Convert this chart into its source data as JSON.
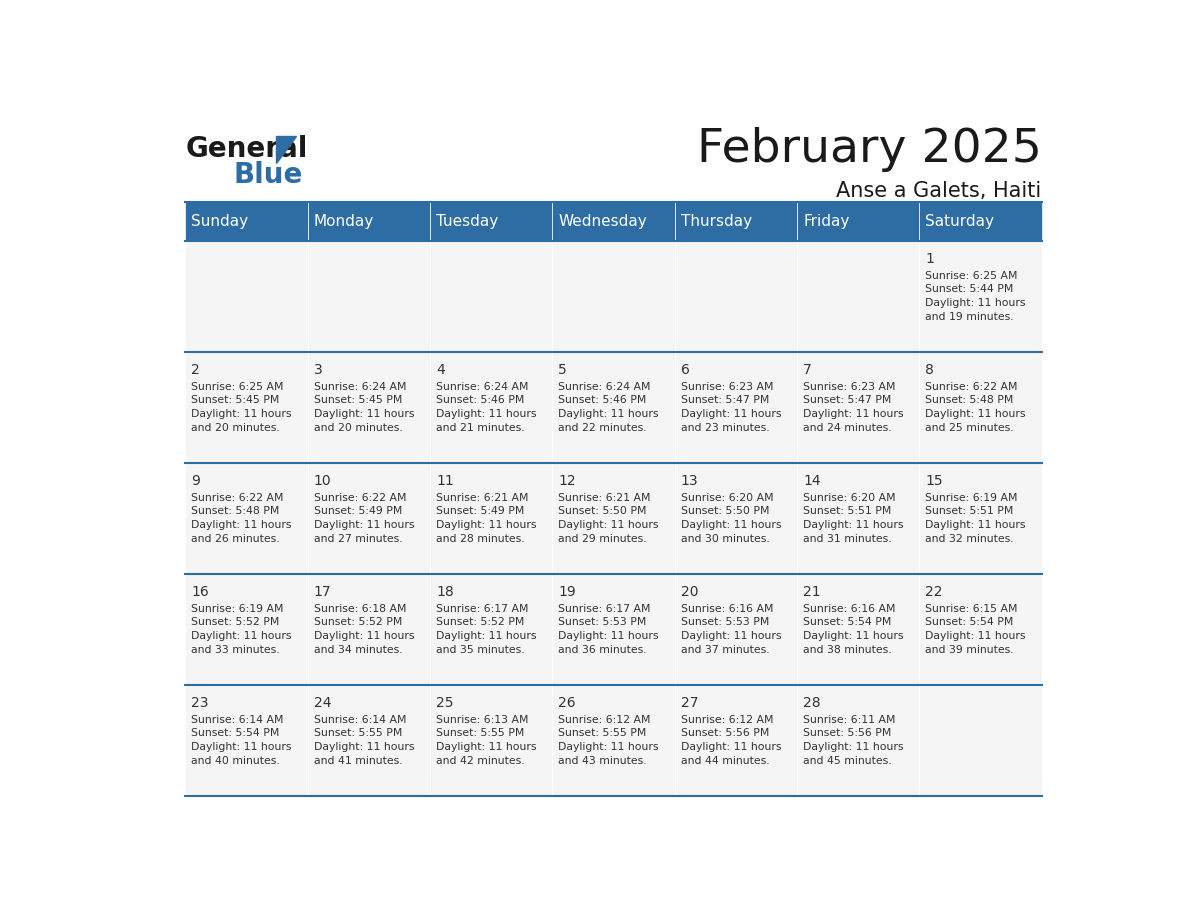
{
  "title": "February 2025",
  "subtitle": "Anse a Galets, Haiti",
  "header_color": "#2E6DA4",
  "header_text_color": "#FFFFFF",
  "cell_bg_color": "#F2F2F2",
  "border_color": "#2E6DA4",
  "text_color": "#333333",
  "days_of_week": [
    "Sunday",
    "Monday",
    "Tuesday",
    "Wednesday",
    "Thursday",
    "Friday",
    "Saturday"
  ],
  "weeks": [
    [
      {
        "day": null,
        "info": null
      },
      {
        "day": null,
        "info": null
      },
      {
        "day": null,
        "info": null
      },
      {
        "day": null,
        "info": null
      },
      {
        "day": null,
        "info": null
      },
      {
        "day": null,
        "info": null
      },
      {
        "day": 1,
        "info": "Sunrise: 6:25 AM\nSunset: 5:44 PM\nDaylight: 11 hours\nand 19 minutes."
      }
    ],
    [
      {
        "day": 2,
        "info": "Sunrise: 6:25 AM\nSunset: 5:45 PM\nDaylight: 11 hours\nand 20 minutes."
      },
      {
        "day": 3,
        "info": "Sunrise: 6:24 AM\nSunset: 5:45 PM\nDaylight: 11 hours\nand 20 minutes."
      },
      {
        "day": 4,
        "info": "Sunrise: 6:24 AM\nSunset: 5:46 PM\nDaylight: 11 hours\nand 21 minutes."
      },
      {
        "day": 5,
        "info": "Sunrise: 6:24 AM\nSunset: 5:46 PM\nDaylight: 11 hours\nand 22 minutes."
      },
      {
        "day": 6,
        "info": "Sunrise: 6:23 AM\nSunset: 5:47 PM\nDaylight: 11 hours\nand 23 minutes."
      },
      {
        "day": 7,
        "info": "Sunrise: 6:23 AM\nSunset: 5:47 PM\nDaylight: 11 hours\nand 24 minutes."
      },
      {
        "day": 8,
        "info": "Sunrise: 6:22 AM\nSunset: 5:48 PM\nDaylight: 11 hours\nand 25 minutes."
      }
    ],
    [
      {
        "day": 9,
        "info": "Sunrise: 6:22 AM\nSunset: 5:48 PM\nDaylight: 11 hours\nand 26 minutes."
      },
      {
        "day": 10,
        "info": "Sunrise: 6:22 AM\nSunset: 5:49 PM\nDaylight: 11 hours\nand 27 minutes."
      },
      {
        "day": 11,
        "info": "Sunrise: 6:21 AM\nSunset: 5:49 PM\nDaylight: 11 hours\nand 28 minutes."
      },
      {
        "day": 12,
        "info": "Sunrise: 6:21 AM\nSunset: 5:50 PM\nDaylight: 11 hours\nand 29 minutes."
      },
      {
        "day": 13,
        "info": "Sunrise: 6:20 AM\nSunset: 5:50 PM\nDaylight: 11 hours\nand 30 minutes."
      },
      {
        "day": 14,
        "info": "Sunrise: 6:20 AM\nSunset: 5:51 PM\nDaylight: 11 hours\nand 31 minutes."
      },
      {
        "day": 15,
        "info": "Sunrise: 6:19 AM\nSunset: 5:51 PM\nDaylight: 11 hours\nand 32 minutes."
      }
    ],
    [
      {
        "day": 16,
        "info": "Sunrise: 6:19 AM\nSunset: 5:52 PM\nDaylight: 11 hours\nand 33 minutes."
      },
      {
        "day": 17,
        "info": "Sunrise: 6:18 AM\nSunset: 5:52 PM\nDaylight: 11 hours\nand 34 minutes."
      },
      {
        "day": 18,
        "info": "Sunrise: 6:17 AM\nSunset: 5:52 PM\nDaylight: 11 hours\nand 35 minutes."
      },
      {
        "day": 19,
        "info": "Sunrise: 6:17 AM\nSunset: 5:53 PM\nDaylight: 11 hours\nand 36 minutes."
      },
      {
        "day": 20,
        "info": "Sunrise: 6:16 AM\nSunset: 5:53 PM\nDaylight: 11 hours\nand 37 minutes."
      },
      {
        "day": 21,
        "info": "Sunrise: 6:16 AM\nSunset: 5:54 PM\nDaylight: 11 hours\nand 38 minutes."
      },
      {
        "day": 22,
        "info": "Sunrise: 6:15 AM\nSunset: 5:54 PM\nDaylight: 11 hours\nand 39 minutes."
      }
    ],
    [
      {
        "day": 23,
        "info": "Sunrise: 6:14 AM\nSunset: 5:54 PM\nDaylight: 11 hours\nand 40 minutes."
      },
      {
        "day": 24,
        "info": "Sunrise: 6:14 AM\nSunset: 5:55 PM\nDaylight: 11 hours\nand 41 minutes."
      },
      {
        "day": 25,
        "info": "Sunrise: 6:13 AM\nSunset: 5:55 PM\nDaylight: 11 hours\nand 42 minutes."
      },
      {
        "day": 26,
        "info": "Sunrise: 6:12 AM\nSunset: 5:55 PM\nDaylight: 11 hours\nand 43 minutes."
      },
      {
        "day": 27,
        "info": "Sunrise: 6:12 AM\nSunset: 5:56 PM\nDaylight: 11 hours\nand 44 minutes."
      },
      {
        "day": 28,
        "info": "Sunrise: 6:11 AM\nSunset: 5:56 PM\nDaylight: 11 hours\nand 45 minutes."
      },
      {
        "day": null,
        "info": null
      }
    ]
  ],
  "logo_text_general": "General",
  "logo_text_blue": "Blue",
  "logo_color_general": "#1a1a1a",
  "logo_color_blue": "#2E6DA4",
  "logo_triangle_color": "#2E6DA4"
}
